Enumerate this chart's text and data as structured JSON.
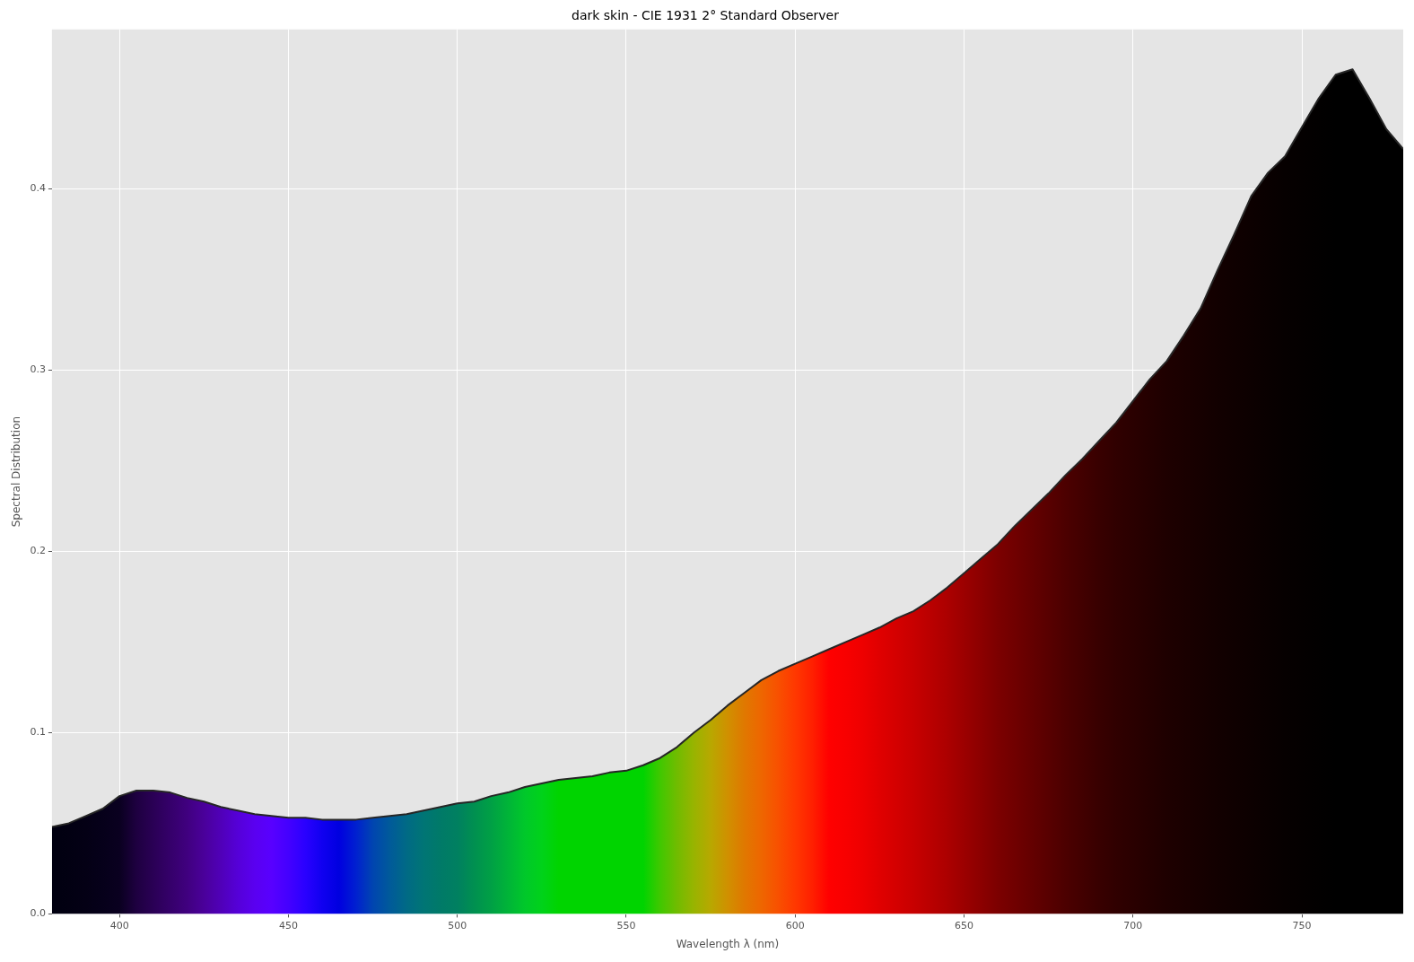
{
  "chart_data": {
    "type": "area",
    "title": "dark skin - CIE 1931 2° Standard Observer",
    "xlabel": "Wavelength λ (nm)",
    "ylabel": "Spectral Distribution",
    "x": [
      380,
      385,
      390,
      395,
      400,
      405,
      410,
      415,
      420,
      425,
      430,
      435,
      440,
      445,
      450,
      455,
      460,
      465,
      470,
      475,
      480,
      485,
      490,
      495,
      500,
      505,
      510,
      515,
      520,
      525,
      530,
      535,
      540,
      545,
      550,
      555,
      560,
      565,
      570,
      575,
      580,
      585,
      590,
      595,
      600,
      605,
      610,
      615,
      620,
      625,
      630,
      635,
      640,
      645,
      650,
      655,
      660,
      665,
      670,
      675,
      680,
      685,
      690,
      695,
      700,
      705,
      710,
      715,
      720,
      725,
      730,
      735,
      740,
      745,
      750,
      755,
      760,
      765,
      770,
      775,
      780
    ],
    "series": [
      {
        "color": "#262626",
        "values": [
          0.048,
          0.05,
          0.054,
          0.058,
          0.065,
          0.068,
          0.068,
          0.067,
          0.064,
          0.062,
          0.059,
          0.057,
          0.055,
          0.054,
          0.053,
          0.053,
          0.052,
          0.052,
          0.052,
          0.053,
          0.054,
          0.055,
          0.057,
          0.059,
          0.061,
          0.062,
          0.065,
          0.067,
          0.07,
          0.072,
          0.074,
          0.075,
          0.076,
          0.078,
          0.079,
          0.082,
          0.086,
          0.092,
          0.1,
          0.107,
          0.115,
          0.122,
          0.129,
          0.134,
          0.138,
          0.142,
          0.146,
          0.15,
          0.154,
          0.158,
          0.163,
          0.167,
          0.173,
          0.18,
          0.188,
          0.196,
          0.204,
          0.214,
          0.223,
          0.232,
          0.242,
          0.251,
          0.261,
          0.271,
          0.283,
          0.295,
          0.305,
          0.319,
          0.334,
          0.355,
          0.375,
          0.396,
          0.409,
          0.418,
          0.434,
          0.45,
          0.463,
          0.466,
          0.45,
          0.433,
          0.422
        ],
        "colors": [
          "#000010",
          "#020012",
          "#040015",
          "#06001a",
          "#0a0020",
          "#1e0040",
          "#2a0055",
          "#35006a",
          "#40007f",
          "#4a009a",
          "#5000b8",
          "#5500d8",
          "#5a00f0",
          "#5800ff",
          "#4400ff",
          "#2a00ff",
          "#1000f0",
          "#0000e0",
          "#0020d0",
          "#0045b0",
          "#005a9a",
          "#006a85",
          "#007575",
          "#007a68",
          "#008060",
          "#009050",
          "#00a045",
          "#00b438",
          "#00c82a",
          "#00d21a",
          "#00d400",
          "#00d400",
          "#00d400",
          "#00d400",
          "#00d400",
          "#00d400",
          "#40c800",
          "#70bc00",
          "#98b400",
          "#b8a800",
          "#d09000",
          "#e07800",
          "#ee6600",
          "#f85000",
          "#ff3800",
          "#ff2000",
          "#ff0000",
          "#f80000",
          "#ee0000",
          "#e00000",
          "#d40000",
          "#c80000",
          "#ba0000",
          "#ac0000",
          "#9c0000",
          "#8c0000",
          "#7c0000",
          "#700000",
          "#640000",
          "#580000",
          "#4c0000",
          "#420000",
          "#380000",
          "#300000",
          "#2a0000",
          "#240000",
          "#1e0000",
          "#1a0000",
          "#160000",
          "#120000",
          "#0f0000",
          "#0c0000",
          "#090000",
          "#060000",
          "#040000",
          "#020000",
          "#000000",
          "#000000",
          "#000000",
          "#000000",
          "#000000"
        ]
      }
    ],
    "xlim": [
      380,
      780
    ],
    "ylim": [
      0,
      0.488
    ],
    "xticks": [
      400,
      450,
      500,
      550,
      600,
      650,
      700,
      750
    ],
    "yticks": [
      {
        "value": 0,
        "label": "0.0"
      },
      {
        "value": 0.1,
        "label": "0.1"
      },
      {
        "value": 0.2,
        "label": "0.2"
      },
      {
        "value": 0.3,
        "label": "0.3"
      },
      {
        "value": 0.4,
        "label": "0.4"
      }
    ],
    "grid": true
  }
}
